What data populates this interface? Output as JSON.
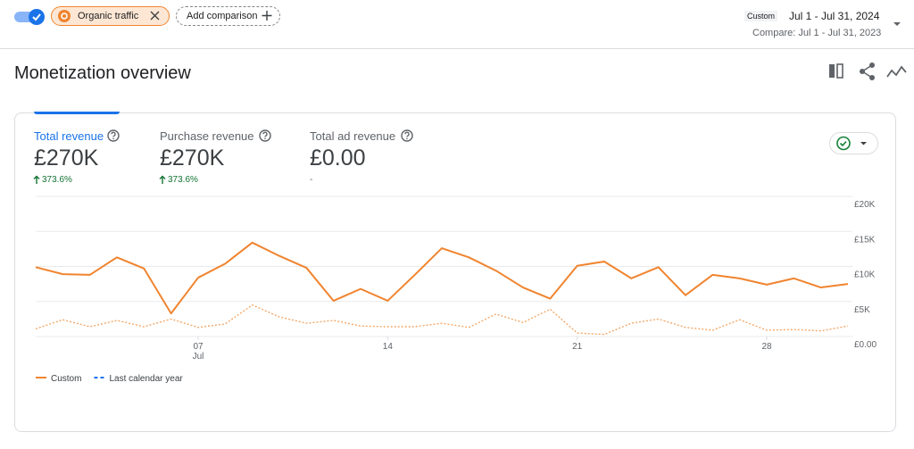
{
  "header": {
    "filter_chip": "Organic traffic",
    "add_comparison": "Add comparison",
    "date_badge": "Custom",
    "date_range": "Jul 1 - Jul 31, 2024",
    "compare_range": "Compare: Jul 1 - Jul 31, 2023",
    "title": "Monetization overview"
  },
  "metrics": [
    {
      "label": "Total revenue",
      "value": "£270K",
      "change": "373.6%"
    },
    {
      "label": "Purchase revenue",
      "value": "£270K",
      "change": "373.6%"
    },
    {
      "label": "Total ad revenue",
      "value": "£0.00",
      "change": "-"
    }
  ],
  "chart_data": {
    "type": "line",
    "x": [
      1,
      2,
      3,
      4,
      5,
      6,
      7,
      8,
      9,
      10,
      11,
      12,
      13,
      14,
      15,
      16,
      17,
      18,
      19,
      20,
      21,
      22,
      23,
      24,
      25,
      26,
      27,
      28,
      29,
      30,
      31
    ],
    "xlim": [
      1,
      31
    ],
    "xticks": [
      {
        "value": 7,
        "label": "07"
      },
      14,
      21,
      28
    ],
    "x_sublabel": "Jul",
    "ylim": [
      0,
      20000
    ],
    "yticks": [
      {
        "value": 0,
        "label": "£0.00"
      },
      {
        "value": 5000,
        "label": "£5K"
      },
      {
        "value": 10000,
        "label": "£10K"
      },
      {
        "value": 15000,
        "label": "£15K"
      },
      {
        "value": 20000,
        "label": "£20K"
      }
    ],
    "grid": true,
    "series": [
      {
        "name": "Custom",
        "color": "#f0842f",
        "style": "solid",
        "values": [
          9900,
          8900,
          8800,
          11300,
          9700,
          3300,
          8400,
          10400,
          13400,
          11500,
          9800,
          5100,
          6800,
          5100,
          8800,
          12600,
          11300,
          9400,
          7000,
          5400,
          10100,
          10700,
          8300,
          9900,
          5900,
          8800,
          8300,
          7400,
          8300,
          7000,
          7500
        ]
      },
      {
        "name": "Last calendar year",
        "color": "#f4a869",
        "legend_color": "#1a73e8",
        "style": "dotted",
        "values": [
          1100,
          2400,
          1400,
          2300,
          1400,
          2500,
          1300,
          1800,
          4500,
          2800,
          1900,
          2300,
          1500,
          1400,
          1400,
          1900,
          1300,
          3200,
          2000,
          3900,
          500,
          300,
          1900,
          2500,
          1300,
          900,
          2400,
          900,
          1000,
          800,
          1500
        ]
      }
    ]
  }
}
